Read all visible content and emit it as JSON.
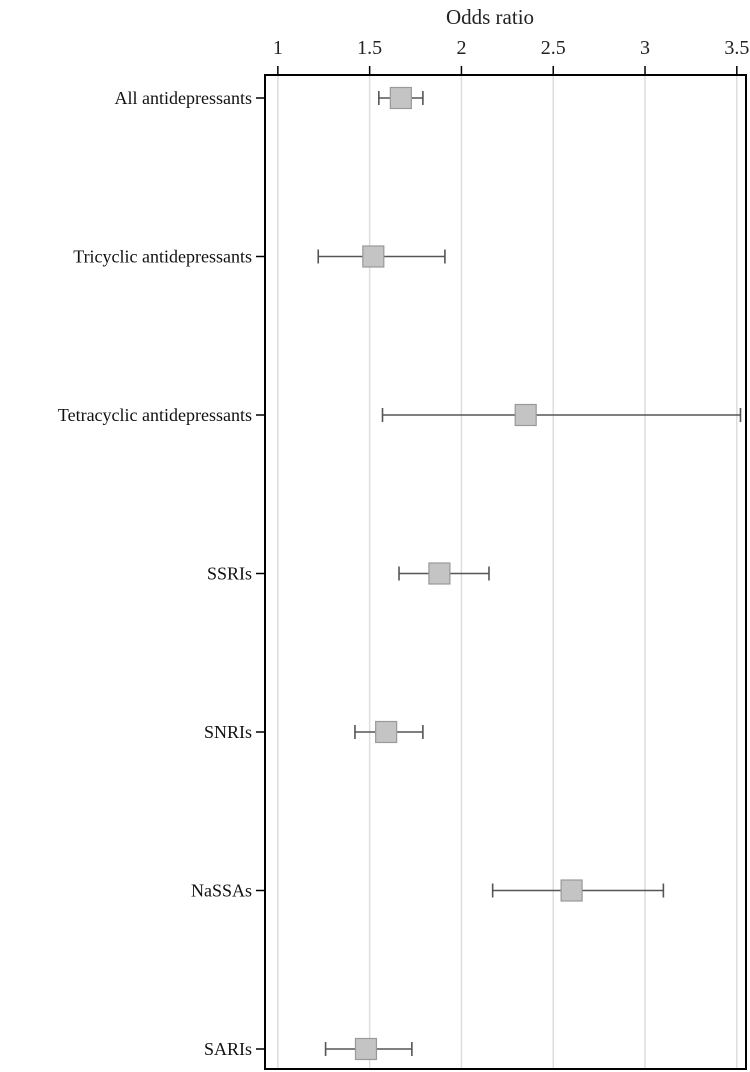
{
  "chart_data": {
    "type": "forest",
    "xlabel": "Odds ratio",
    "xlim": [
      0.93,
      3.55
    ],
    "x_ticks": [
      "1",
      "1.5",
      "2",
      "2.5",
      "3",
      "3.5"
    ],
    "x_tick_values": [
      1,
      1.5,
      2,
      2.5,
      3,
      3.5
    ],
    "grid": "vertical",
    "axis_position": "top",
    "marker": "square",
    "colors": {
      "marker_fill": "#c4c4c4",
      "marker_stroke": "#999999",
      "whisker": "#555555",
      "grid": "#dddddd",
      "frame": "#000000"
    },
    "categories": [
      "All antidepressants",
      "Tricyclic antidepressants",
      "Tetracyclic antidepressants",
      "SSRIs",
      "SNRIs",
      "NaSSAs",
      "SARIs"
    ],
    "estimates": [
      1.67,
      1.52,
      2.35,
      1.88,
      1.59,
      2.6,
      1.48
    ],
    "lower": [
      1.55,
      1.22,
      1.57,
      1.66,
      1.42,
      2.17,
      1.26
    ],
    "upper": [
      1.79,
      1.91,
      3.52,
      2.15,
      1.79,
      3.1,
      1.73
    ]
  }
}
